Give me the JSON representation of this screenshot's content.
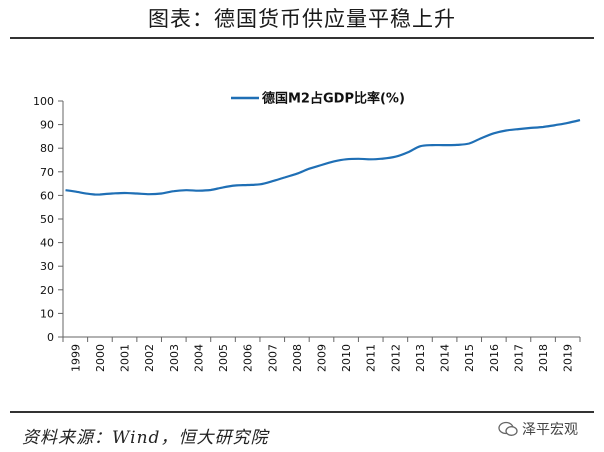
{
  "header": {
    "title": "图表：德国货币供应量平稳上升"
  },
  "footer": {
    "source": "资料来源：Wind，恒大研究院",
    "brand": "泽平宏观",
    "brand_icon": "wechat-icon"
  },
  "colors": {
    "series": "#1f6fb5",
    "axis": "#666666",
    "text": "#111111"
  },
  "chart_data": {
    "type": "line",
    "title": "",
    "xlabel": "",
    "ylabel": "",
    "ylim": [
      0,
      100
    ],
    "yticks": [
      0,
      10,
      20,
      30,
      40,
      50,
      60,
      70,
      80,
      90,
      100
    ],
    "categories": [
      "1999",
      "2000",
      "2001",
      "2002",
      "2003",
      "2004",
      "2005",
      "2006",
      "2007",
      "2008",
      "2009",
      "2010",
      "2011",
      "2012",
      "2013",
      "2014",
      "2015",
      "2016",
      "2017",
      "2018",
      "2019"
    ],
    "grid": false,
    "legend_position": "top-center",
    "series": [
      {
        "name": "德国M2占GDP比率(%)",
        "x": [
          1998.6,
          1999.0,
          1999.5,
          1999.8,
          2000.0,
          2000.5,
          2001.0,
          2001.5,
          2002.0,
          2002.5,
          2003.0,
          2003.5,
          2004.0,
          2004.5,
          2005.0,
          2005.5,
          2006.0,
          2006.5,
          2007.0,
          2007.5,
          2008.0,
          2008.5,
          2009.0,
          2009.5,
          2010.0,
          2010.5,
          2011.0,
          2011.5,
          2012.0,
          2012.5,
          2013.0,
          2013.5,
          2014.0,
          2014.5,
          2015.0,
          2015.5,
          2016.0,
          2016.5,
          2017.0,
          2017.5,
          2018.0,
          2018.5,
          2019.0,
          2019.5
        ],
        "values": [
          62.2,
          61.6,
          60.7,
          60.4,
          60.4,
          60.8,
          61.0,
          60.8,
          60.5,
          60.8,
          61.8,
          62.2,
          62.0,
          62.3,
          63.4,
          64.2,
          64.4,
          64.7,
          66.0,
          67.6,
          69.2,
          71.3,
          72.9,
          74.4,
          75.3,
          75.5,
          75.3,
          75.6,
          76.4,
          78.2,
          80.8,
          81.3,
          81.3,
          81.4,
          82.0,
          84.3,
          86.3,
          87.5,
          88.1,
          88.6,
          89.0,
          89.8,
          90.7,
          91.9
        ]
      }
    ]
  }
}
